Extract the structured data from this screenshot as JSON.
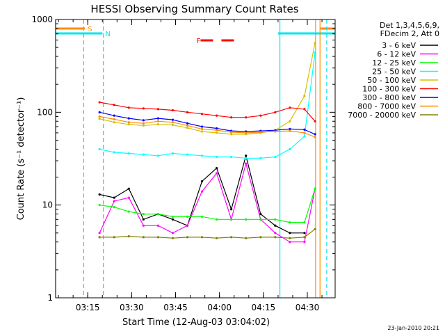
{
  "chart_data": {
    "type": "line",
    "title": "HESSI Observing Summary Count Rates",
    "xlabel": "Start Time (12-Aug-03 03:04:02)",
    "ylabel": "Count Rate (s⁻¹ detector⁻¹)",
    "yscale": "log",
    "ylim": [
      1,
      1000
    ],
    "xlim": [
      "03:04:02",
      "04:39:30"
    ],
    "x_ticks": [
      "03:15",
      "03:30",
      "03:45",
      "04:00",
      "04:15",
      "04:30"
    ],
    "x_ticks_min": [
      10.97,
      25.97,
      40.97,
      55.97,
      70.97,
      85.97
    ],
    "y_ticks": [
      1,
      10,
      100,
      1000
    ],
    "y_tick_labels": [
      "1",
      "10",
      "100",
      "1000"
    ],
    "legend_header": [
      "Det 1,3,4,5,6,9,",
      "FDecim 2, Att 0"
    ],
    "legend_position": "right",
    "footer": "23-Jan-2010 20:21",
    "flags": [
      {
        "label": "S",
        "color": "#ff8c00",
        "start_min": 0.0,
        "end_min": 10.0,
        "style": "solid-bar"
      },
      {
        "label": "S",
        "color": "#ff8c00",
        "start_min": 90.5,
        "end_min": 95.5,
        "style": "solid-bar"
      },
      {
        "label": "N",
        "color": "#00e5ee",
        "start_min": 0.0,
        "end_min": 16.0,
        "style": "solid-bar"
      },
      {
        "label": "N",
        "color": "#00e5ee",
        "start_min": 76.0,
        "end_min": 95.5,
        "style": "solid-bar"
      },
      {
        "label": "F",
        "color": "#ff0000",
        "start_min": 49.5,
        "end_min": 63.0,
        "style": "dashed-bar"
      }
    ],
    "vlines": [
      {
        "min": 0.0,
        "color": "#00e5ee",
        "dash": false
      },
      {
        "min": 9.6,
        "color": "#ff8c00",
        "dash": true
      },
      {
        "min": 16.3,
        "color": "#00e5ee",
        "dash": true
      },
      {
        "min": 76.6,
        "color": "#00e5ee",
        "dash": false
      },
      {
        "min": 88.8,
        "color": "#ff8c00",
        "dash": false
      },
      {
        "min": 90.3,
        "color": "#ff8c00",
        "dash": false
      },
      {
        "min": 92.6,
        "color": "#00e5ee",
        "dash": true
      }
    ],
    "x_min": [
      11,
      15,
      20,
      25,
      30,
      35,
      40,
      45,
      50,
      55,
      60,
      65,
      70,
      75,
      80,
      85,
      88.6
    ],
    "series": [
      {
        "name": "3 - 6 keV",
        "color": "#000000",
        "values": [
          null,
          13,
          12,
          15,
          7,
          8,
          7,
          6,
          18,
          25,
          9,
          34,
          8,
          6,
          5,
          5,
          null
        ]
      },
      {
        "name": "6 - 12 keV",
        "color": "#ff00ff",
        "values": [
          null,
          5,
          11,
          12,
          6,
          6,
          5,
          6,
          14,
          22,
          7,
          28,
          7,
          5,
          4,
          4,
          15
        ]
      },
      {
        "name": "12 - 25 keV",
        "color": "#00ff00",
        "values": [
          null,
          10,
          9.5,
          8.5,
          8,
          8,
          7.5,
          7.5,
          7.5,
          7,
          7,
          7,
          7,
          7,
          6.5,
          6.5,
          15
        ]
      },
      {
        "name": "25 - 50 keV",
        "color": "#00ffff",
        "values": [
          null,
          40,
          37,
          36,
          35,
          34,
          36,
          35,
          34,
          33,
          33,
          32,
          32,
          33,
          40,
          55,
          440
        ]
      },
      {
        "name": "50 - 100 keV",
        "color": "#d4c000",
        "values": [
          null,
          85,
          78,
          74,
          72,
          74,
          73,
          68,
          62,
          60,
          58,
          58,
          60,
          64,
          80,
          150,
          560
        ]
      },
      {
        "name": "100 - 300 keV",
        "color": "#ff0000",
        "values": [
          null,
          128,
          120,
          112,
          110,
          108,
          105,
          100,
          96,
          92,
          88,
          88,
          92,
          100,
          112,
          108,
          80
        ]
      },
      {
        "name": "300 - 800 keV",
        "color": "#0000ff",
        "values": [
          null,
          100,
          92,
          86,
          82,
          86,
          83,
          76,
          70,
          67,
          63,
          62,
          63,
          64,
          66,
          65,
          58
        ]
      },
      {
        "name": "800 - 7000 keV",
        "color": "#ff8c00",
        "values": [
          null,
          90,
          84,
          78,
          76,
          80,
          78,
          72,
          66,
          64,
          61,
          60,
          61,
          62,
          63,
          60,
          54
        ]
      },
      {
        "name": "7000 - 20000 keV",
        "color": "#808000",
        "values": [
          null,
          4.5,
          4.5,
          4.6,
          4.5,
          4.5,
          4.4,
          4.5,
          4.5,
          4.4,
          4.5,
          4.4,
          4.5,
          4.5,
          4.4,
          4.5,
          5.5
        ]
      }
    ]
  }
}
